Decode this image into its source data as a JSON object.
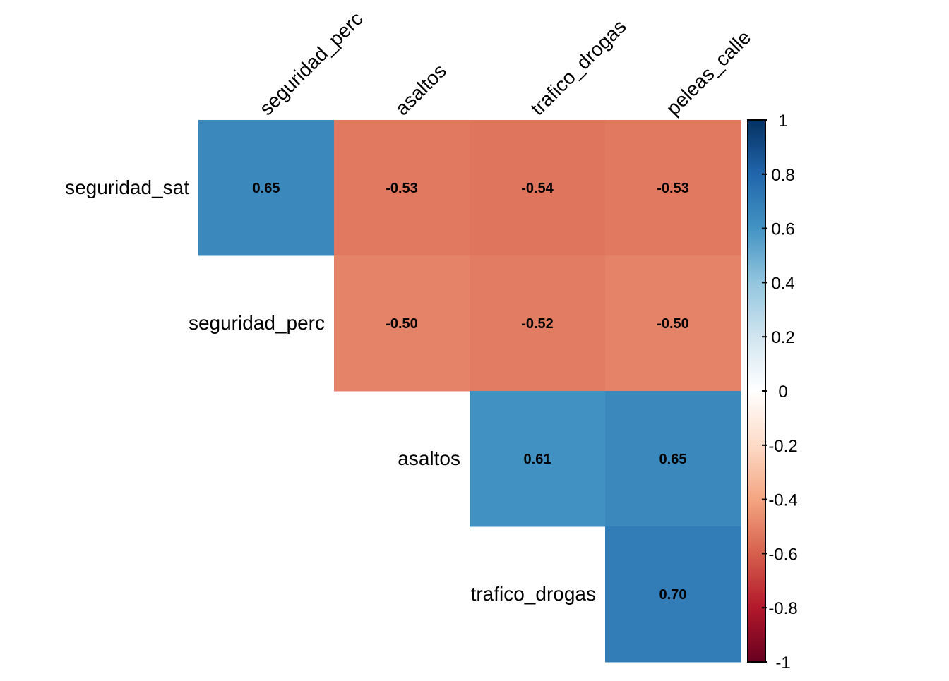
{
  "chart_data": {
    "type": "heatmap",
    "title": "",
    "subtype": "correlation matrix (upper triangle)",
    "row_labels": [
      "seguridad_sat",
      "seguridad_perc",
      "asaltos",
      "trafico_drogas"
    ],
    "col_labels": [
      "seguridad_perc",
      "asaltos",
      "trafico_drogas",
      "peleas_calle"
    ],
    "values": [
      [
        0.65,
        -0.53,
        -0.54,
        -0.53
      ],
      [
        null,
        -0.5,
        -0.52,
        -0.5
      ],
      [
        null,
        null,
        0.61,
        0.65
      ],
      [
        null,
        null,
        null,
        0.7
      ]
    ],
    "value_labels": [
      [
        "0.65",
        "-0.53",
        "-0.54",
        "-0.53"
      ],
      [
        null,
        "-0.50",
        "-0.52",
        "-0.50"
      ],
      [
        null,
        null,
        "0.61",
        "0.65"
      ],
      [
        null,
        null,
        null,
        "0.70"
      ]
    ],
    "colorbar": {
      "range": [
        -1,
        1
      ],
      "ticks": [
        "1",
        "0.8",
        "0.6",
        "0.4",
        "0.2",
        "0",
        "-0.2",
        "-0.4",
        "-0.6",
        "-0.8",
        "-1"
      ],
      "tick_values": [
        1,
        0.8,
        0.6,
        0.4,
        0.2,
        0,
        -0.2,
        -0.4,
        -0.6,
        -0.8,
        -1
      ],
      "palette": [
        "#67001F",
        "#B2182B",
        "#D6604D",
        "#F4A582",
        "#FDDBC7",
        "#FFFFFF",
        "#D1E5F0",
        "#92C5DE",
        "#4393C3",
        "#2166AC",
        "#053061"
      ],
      "placement": "right"
    }
  }
}
